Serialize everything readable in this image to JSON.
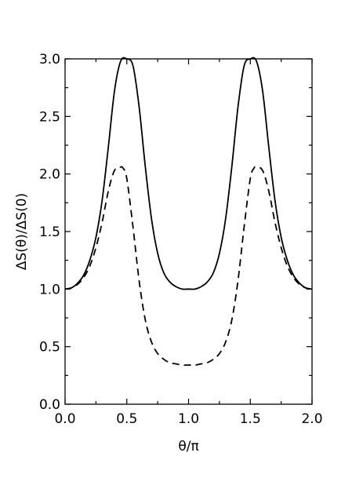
{
  "chart_data": {
    "type": "line",
    "xlabel": "θ/π",
    "ylabel": "ΔS(θ)/ΔS(0)",
    "xlim": [
      0.0,
      2.0
    ],
    "ylim": [
      0.0,
      3.0
    ],
    "x_ticks": [
      0.0,
      0.5,
      1.0,
      1.5,
      2.0
    ],
    "x_tick_labels": [
      "0.0",
      "0.5",
      "1.0",
      "1.5",
      "2.0"
    ],
    "y_ticks": [
      0.0,
      0.5,
      1.0,
      1.5,
      2.0,
      2.5,
      3.0
    ],
    "y_tick_labels": [
      "0.0",
      "0.5",
      "1.0",
      "1.5",
      "2.0",
      "2.5",
      "3.0"
    ],
    "grid": false,
    "legend": false,
    "series": [
      {
        "style": "solid",
        "color": "#000000",
        "x": [
          0.0,
          0.05,
          0.1,
          0.15,
          0.2,
          0.25,
          0.3,
          0.35,
          0.4,
          0.45,
          0.5,
          0.55,
          0.6,
          0.65,
          0.7,
          0.75,
          0.8,
          0.85,
          0.9,
          0.95,
          1.0,
          1.05,
          1.1,
          1.15,
          1.2,
          1.25,
          1.3,
          1.35,
          1.4,
          1.45,
          1.5,
          1.55,
          1.6,
          1.65,
          1.7,
          1.75,
          1.8,
          1.85,
          1.9,
          1.95,
          2.0
        ],
        "y": [
          1.0,
          1.01,
          1.05,
          1.12,
          1.25,
          1.45,
          1.77,
          2.23,
          2.72,
          2.98,
          3.0,
          2.94,
          2.58,
          2.06,
          1.61,
          1.31,
          1.14,
          1.06,
          1.02,
          1.0,
          1.0,
          1.0,
          1.02,
          1.06,
          1.14,
          1.31,
          1.61,
          2.06,
          2.58,
          2.94,
          3.0,
          2.98,
          2.72,
          2.23,
          1.77,
          1.45,
          1.25,
          1.12,
          1.05,
          1.01,
          1.0
        ]
      },
      {
        "style": "dashed",
        "color": "#000000",
        "x": [
          0.0,
          0.05,
          0.1,
          0.15,
          0.2,
          0.25,
          0.3,
          0.35,
          0.4,
          0.45,
          0.47,
          0.5,
          0.55,
          0.6,
          0.65,
          0.7,
          0.75,
          0.8,
          0.85,
          0.9,
          0.95,
          1.0,
          1.05,
          1.1,
          1.15,
          1.2,
          1.25,
          1.3,
          1.35,
          1.4,
          1.45,
          1.5,
          1.53,
          1.55,
          1.6,
          1.65,
          1.7,
          1.75,
          1.8,
          1.85,
          1.9,
          1.95,
          2.0
        ],
        "y": [
          1.0,
          1.01,
          1.04,
          1.1,
          1.2,
          1.36,
          1.58,
          1.85,
          2.03,
          2.06,
          2.05,
          1.96,
          1.54,
          1.07,
          0.73,
          0.54,
          0.44,
          0.39,
          0.36,
          0.35,
          0.34,
          0.34,
          0.34,
          0.35,
          0.36,
          0.39,
          0.44,
          0.54,
          0.73,
          1.07,
          1.54,
          1.96,
          2.05,
          2.06,
          2.03,
          1.85,
          1.58,
          1.36,
          1.2,
          1.1,
          1.04,
          1.01,
          1.0
        ]
      }
    ]
  }
}
